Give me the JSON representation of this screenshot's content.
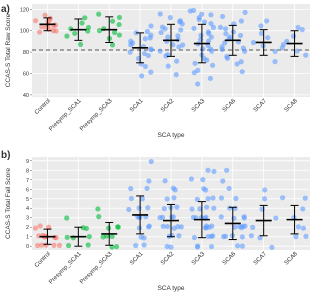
{
  "chart_data": [
    {
      "type": "strip",
      "panel_label": "a)",
      "ylabel": "CCAS-S Total Raw Score",
      "xlabel": "SCA type",
      "categories": [
        "Control",
        "Presymp_SCA1",
        "Presymp_SCA3",
        "SCA1",
        "SCA2",
        "SCA3",
        "SCA6",
        "SCA7",
        "SCA8"
      ],
      "colors": [
        "#F8766D",
        "#00BA38",
        "#00BA38",
        "#619CFF",
        "#619CFF",
        "#619CFF",
        "#619CFF",
        "#619CFF",
        "#619CFF"
      ],
      "points": [
        [
          98,
          100,
          102,
          103,
          104,
          105,
          106,
          106,
          107,
          108,
          109,
          110,
          112,
          114,
          100
        ],
        [
          88,
          94,
          98,
          100,
          102,
          104,
          108,
          112
        ],
        [
          86,
          92,
          96,
          99,
          101,
          103,
          105,
          108,
          112,
          115
        ],
        [
          58,
          62,
          66,
          70,
          73,
          76,
          78,
          80,
          82,
          84,
          85,
          86,
          88,
          90,
          92,
          94,
          96,
          98,
          100,
          104
        ],
        [
          60,
          66,
          72,
          76,
          80,
          84,
          86,
          88,
          90,
          92,
          94,
          96,
          98,
          100,
          102,
          104,
          106,
          108,
          110,
          112,
          116,
          78
        ],
        [
          50,
          55,
          60,
          64,
          68,
          70,
          72,
          75,
          78,
          80,
          82,
          84,
          86,
          88,
          90,
          92,
          94,
          96,
          98,
          100,
          102,
          104,
          106,
          108,
          110,
          112,
          114,
          116,
          118,
          120
        ],
        [
          62,
          68,
          72,
          76,
          80,
          82,
          84,
          86,
          88,
          90,
          92,
          94,
          96,
          98,
          100,
          102,
          104,
          106,
          110,
          114,
          118,
          74
        ],
        [
          72,
          80,
          86,
          90,
          94,
          98,
          104,
          110
        ],
        [
          76,
          80,
          84,
          86,
          90,
          94,
          100,
          104
        ]
      ],
      "means": [
        106,
        101,
        101,
        84,
        91,
        88,
        91,
        89,
        88
      ],
      "errors": [
        6,
        10,
        12,
        14,
        15,
        18,
        14,
        12,
        12
      ],
      "reference_line": 82,
      "ylim": [
        38,
        125
      ],
      "yticks": [
        40,
        60,
        80,
        100,
        120
      ],
      "grid": true
    },
    {
      "type": "strip",
      "panel_label": "b)",
      "ylabel": "CCAS-S Total Fail Score",
      "xlabel": "SCA type",
      "categories": [
        "Control",
        "Presymp_SCA1",
        "Presymp_SCA3",
        "SCA1",
        "SCA2",
        "SCA3",
        "SCA6",
        "SCA7",
        "SCA8"
      ],
      "colors": [
        "#F8766D",
        "#00BA38",
        "#00BA38",
        "#619CFF",
        "#619CFF",
        "#619CFF",
        "#619CFF",
        "#619CFF",
        "#619CFF"
      ],
      "points": [
        [
          0,
          0,
          0,
          0,
          1,
          1,
          1,
          1,
          1,
          1,
          2,
          2,
          2,
          1,
          0
        ],
        [
          0,
          0,
          1,
          1,
          1,
          2,
          2,
          3
        ],
        [
          0,
          0,
          1,
          1,
          1,
          2,
          2,
          2,
          3,
          4
        ],
        [
          0,
          0,
          1,
          1,
          2,
          2,
          2,
          3,
          3,
          3,
          3,
          4,
          4,
          4,
          5,
          5,
          6,
          6,
          7,
          9
        ],
        [
          0,
          0,
          1,
          1,
          1,
          2,
          2,
          2,
          2,
          3,
          3,
          3,
          3,
          4,
          4,
          4,
          5,
          5,
          6,
          6,
          7,
          2
        ],
        [
          0,
          0,
          0,
          1,
          1,
          1,
          1,
          2,
          2,
          2,
          2,
          2,
          3,
          3,
          3,
          3,
          3,
          4,
          4,
          4,
          4,
          5,
          5,
          5,
          6,
          6,
          7,
          7,
          8,
          8
        ],
        [
          0,
          0,
          1,
          1,
          1,
          1,
          2,
          2,
          2,
          2,
          2,
          3,
          3,
          3,
          3,
          4,
          4,
          5,
          5,
          6,
          7,
          8
        ],
        [
          0,
          1,
          1,
          2,
          3,
          4,
          5,
          6
        ],
        [
          1,
          1,
          2,
          2,
          3,
          4,
          5,
          5
        ]
      ],
      "means": [
        1,
        1,
        1.3,
        3.3,
        2.7,
        2.8,
        2.4,
        2.7,
        2.8
      ],
      "errors": [
        0.8,
        1,
        1.2,
        2,
        1.7,
        1.9,
        1.7,
        1.6,
        1.5
      ],
      "ylim": [
        -0.4,
        9.4
      ],
      "yticks": [
        0,
        1,
        2,
        3,
        4,
        5,
        6,
        7,
        8,
        9
      ],
      "grid": true
    }
  ]
}
